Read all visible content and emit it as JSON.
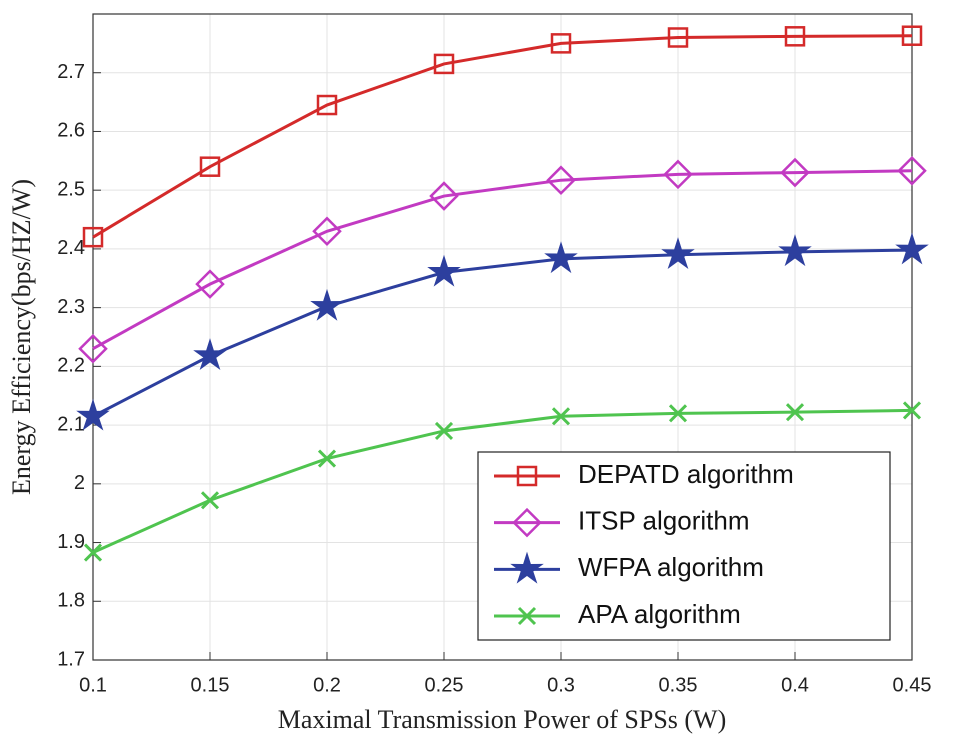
{
  "chart_data": {
    "type": "line",
    "x_label": "Maximal Transmission Power of SPSs (W)",
    "y_label": "Energy Efficiency(bps/HZ/W)",
    "x": [
      0.1,
      0.15,
      0.2,
      0.25,
      0.3,
      0.35,
      0.4,
      0.45
    ],
    "series": [
      {
        "name": "DEPATD algorithm",
        "color": "#d42a2a",
        "marker": "square",
        "values": [
          2.42,
          2.54,
          2.645,
          2.715,
          2.75,
          2.76,
          2.762,
          2.763
        ]
      },
      {
        "name": "ITSP algorithm",
        "color": "#c23ac2",
        "marker": "diamond",
        "values": [
          2.23,
          2.34,
          2.43,
          2.49,
          2.517,
          2.527,
          2.53,
          2.533
        ]
      },
      {
        "name": "WFPA algorithm",
        "color": "#2d3f9e",
        "marker": "star",
        "values": [
          2.115,
          2.218,
          2.302,
          2.36,
          2.383,
          2.39,
          2.395,
          2.398
        ]
      },
      {
        "name": "APA algorithm",
        "color": "#4fc44f",
        "marker": "x",
        "values": [
          1.883,
          1.972,
          2.043,
          2.09,
          2.115,
          2.12,
          2.122,
          2.125
        ]
      }
    ],
    "xlim": [
      0.1,
      0.45
    ],
    "xticks": [
      0.1,
      0.15,
      0.2,
      0.25,
      0.3,
      0.35,
      0.4,
      0.45
    ],
    "ylim": [
      1.7,
      2.8
    ],
    "yticks": [
      1.7,
      1.8,
      1.9,
      2,
      2.1,
      2.2,
      2.3,
      2.4,
      2.5,
      2.6,
      2.7
    ],
    "grid": true,
    "legend": "lower right"
  }
}
